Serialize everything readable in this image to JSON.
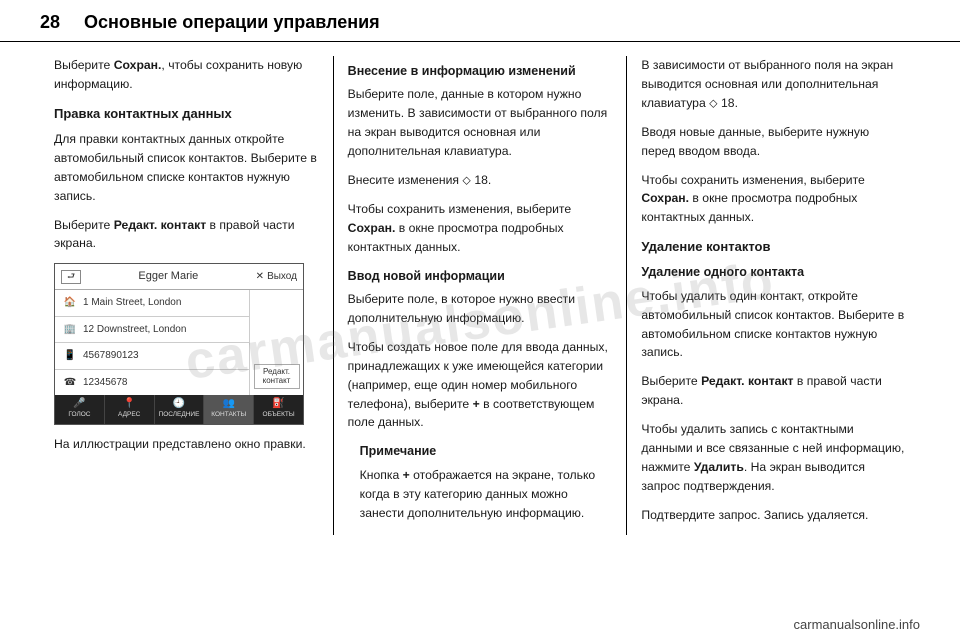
{
  "page": {
    "number": "28",
    "title": "Основные операции управления"
  },
  "col1": {
    "p1a": "Выберите ",
    "p1b": "Сохран.",
    "p1c": ", чтобы сохранить новую информацию.",
    "h3": "Правка контактных данных",
    "p2": "Для правки контактных данных откройте автомобильный список контактов. Выберите в автомобильном списке контактов нужную запись.",
    "p3a": "Выберите ",
    "p3b": "Редакт. контакт",
    "p3c": " в правой части экрана.",
    "caption": "На иллюстрации представлено окно правки."
  },
  "screenshot": {
    "contact_name": "Egger Marie",
    "exit_label": "Выход",
    "rows": {
      "home_addr": "1 Main Street, London",
      "work_addr": "12 Downstreet, London",
      "phone1": "4567890123",
      "phone2": "12345678"
    },
    "edit_button": "Редакт. контакт",
    "tabs": {
      "voice": "ГОЛОС",
      "address": "АДРЕС",
      "recent": "ПОСЛЕДНИЕ",
      "contacts": "КОНТАКТЫ",
      "poi": "ОБЪЕКТЫ"
    }
  },
  "col2": {
    "h4a": "Внесение в информацию изменений",
    "p1": "Выберите поле, данные в котором нужно изменить. В зависимости от выбранного поля на экран выводится основная или дополнительная клавиатура.",
    "p2": "Внесите изменения ⬦ 18.",
    "p3a": "Чтобы сохранить изменения, выберите ",
    "p3b": "Сохран.",
    "p3c": " в окне просмотра подробных контактных данных.",
    "h4b": "Ввод новой информации",
    "p4": "Выберите поле, в которое нужно ввести дополнительную информацию.",
    "p5a": "Чтобы создать новое поле для ввода данных, принадлежащих к уже имеющейся категории (например, еще один номер мобильного телефона), выберите ",
    "p5b": "+",
    "p5c": " в соответствующем поле данных.",
    "note_h": "Примечание",
    "note_a": "Кнопка ",
    "note_b": "+",
    "note_c": " отображается на экране, только когда в эту категорию данных можно занести дополнительную информацию."
  },
  "col3": {
    "p1": "В зависимости от выбранного поля на экран выводится основная или дополнительная клавиатура ⬦ 18.",
    "p2": "Вводя новые данные, выберите нужную перед вводом ввода.",
    "p3a": "Чтобы сохранить изменения, выберите ",
    "p3b": "Сохран.",
    "p3c": " в окне просмотра подробных контактных данных.",
    "h3": "Удаление контактов",
    "h4": "Удаление одного контакта",
    "p4": "Чтобы удалить один контакт, откройте автомобильный список контактов. Выберите в автомобильном списке контактов нужную запись.",
    "p5a": "Выберите ",
    "p5b": "Редакт. контакт",
    "p5c": " в правой части экрана.",
    "p6a": "Чтобы удалить запись с контактными данными и все связанные с ней информацию, нажмите ",
    "p6b": "Удалить",
    "p6c": ". На экран выводится запрос подтверждения.",
    "p7": "Подтвердите запрос. Запись удаляется."
  },
  "footer": {
    "url": "carmanualsonline.info"
  },
  "watermark": "carmanualsonline.info"
}
